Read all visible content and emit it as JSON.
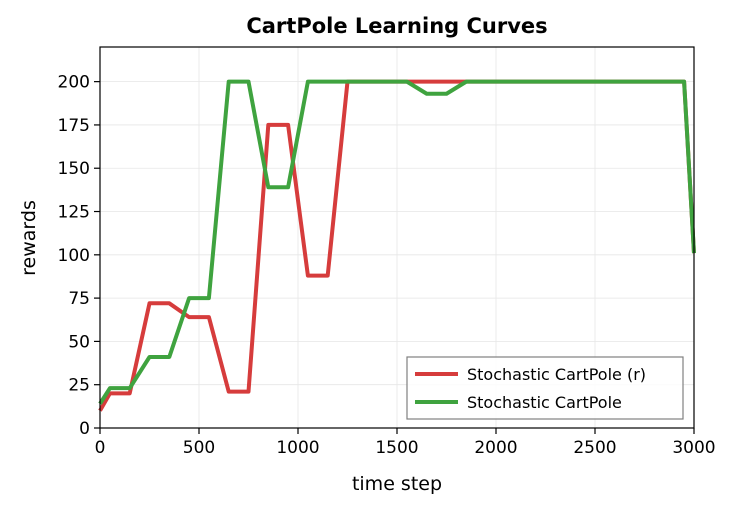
{
  "chart_data": {
    "type": "line",
    "title": "CartPole Learning Curves",
    "xlabel": "time step",
    "ylabel": "rewards",
    "xlim": [
      0,
      3000
    ],
    "ylim": [
      0,
      220
    ],
    "xticks": [
      0,
      500,
      1000,
      1500,
      2000,
      2500,
      3000
    ],
    "xtick_labels": [
      "0",
      "500",
      "1000",
      "1500",
      "2000",
      "2500",
      "3000"
    ],
    "yticks": [
      0,
      25,
      50,
      75,
      100,
      125,
      150,
      175,
      200
    ],
    "ytick_labels": [
      "0",
      "25",
      "50",
      "75",
      "100",
      "125",
      "150",
      "175",
      "200"
    ],
    "grid": true,
    "legend_position": "lower-right",
    "series": [
      {
        "name": "Stochastic CartPole (r)",
        "color": "#d63c3c",
        "x": [
          0,
          50,
          150,
          250,
          350,
          450,
          550,
          650,
          750,
          850,
          950,
          1050,
          1150,
          1250,
          1350,
          1450,
          1550,
          1650,
          1750,
          1850,
          1950,
          2050,
          2150,
          2250,
          2350,
          2450,
          2550,
          2650,
          2750,
          2850,
          2950,
          3000
        ],
        "y": [
          10,
          20,
          20,
          72,
          72,
          64,
          64,
          21,
          21,
          175,
          175,
          88,
          88,
          200,
          200,
          200,
          200,
          200,
          200,
          200,
          200,
          200,
          200,
          200,
          200,
          200,
          200,
          200,
          200,
          200,
          200,
          101
        ]
      },
      {
        "name": "Stochastic CartPole",
        "color": "#3fa33f",
        "x": [
          0,
          50,
          150,
          250,
          350,
          450,
          550,
          650,
          750,
          850,
          950,
          1050,
          1150,
          1250,
          1350,
          1450,
          1550,
          1650,
          1750,
          1850,
          1950,
          2050,
          2150,
          2250,
          2350,
          2450,
          2550,
          2650,
          2750,
          2850,
          2950,
          3000
        ],
        "y": [
          14,
          23,
          23,
          41,
          41,
          75,
          75,
          200,
          200,
          139,
          139,
          200,
          200,
          200,
          200,
          200,
          200,
          193,
          193,
          200,
          200,
          200,
          200,
          200,
          200,
          200,
          200,
          200,
          200,
          200,
          200,
          101
        ]
      }
    ]
  }
}
